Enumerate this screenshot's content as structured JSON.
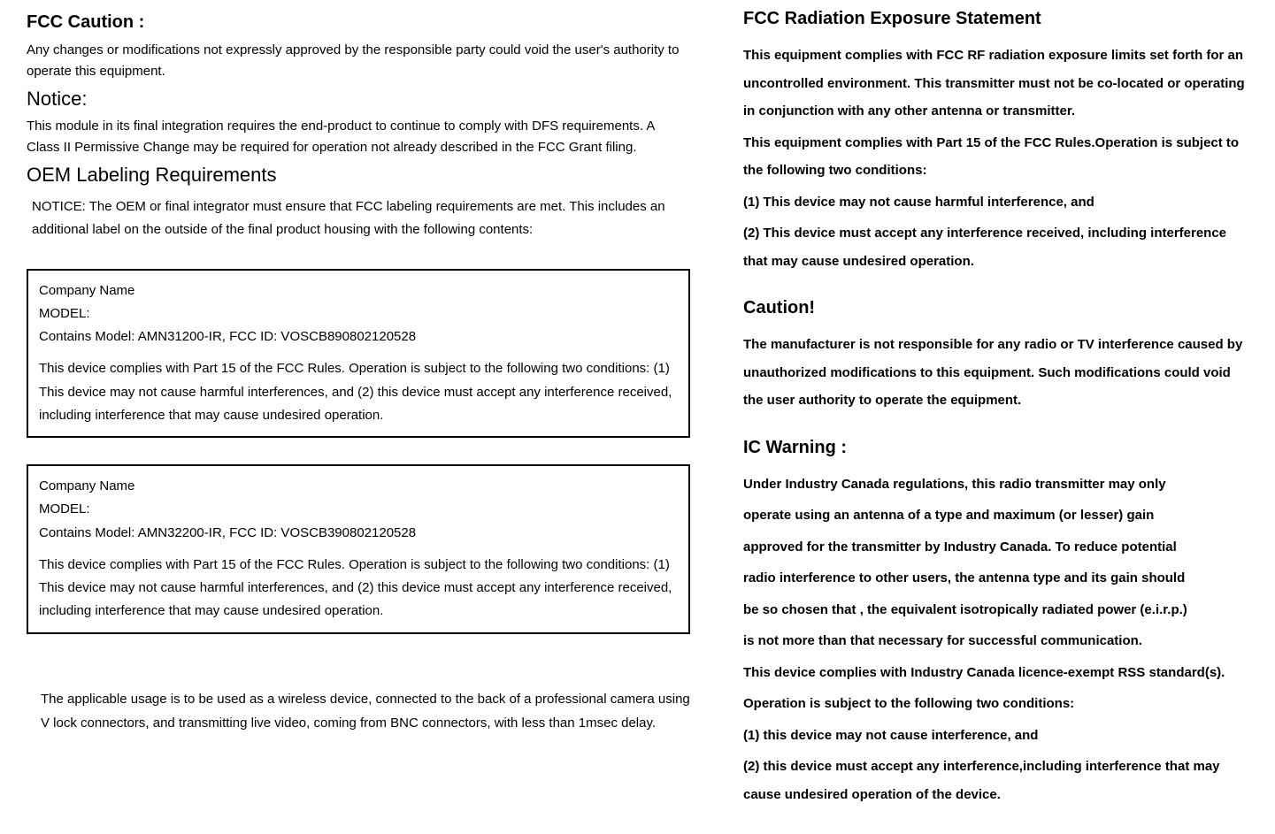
{
  "left": {
    "fcc_caution_heading": "FCC Caution :",
    "fcc_caution_text": "Any changes or modifications not expressly approved by the responsible party could void the user's authority to operate this equipment.",
    "notice_heading": "Notice:",
    "notice_text": "This module in its final integration requires the end-product to continue to comply with DFS requirements. A Class II Permissive Change may be required for operation not already described in the FCC Grant filing.",
    "oem_heading": "OEM Labeling Requirements",
    "oem_notice": "NOTICE: The OEM or final integrator must ensure that FCC labeling requirements are met. This includes an additional label on the outside of the final product housing with the following contents:",
    "box1": {
      "company": "Company Name",
      "model_label": "MODEL:",
      "contains": "Contains Model: AMN31200-IR, FCC ID: VOSCB890802120528",
      "compliance": "This device complies with Part 15 of the FCC Rules. Operation is subject to the following two conditions: (1) This device may not cause harmful interferences, and (2) this device must accept any interference received, including interference that may cause undesired operation."
    },
    "box2": {
      "company": "Company Name",
      "model_label": "MODEL:",
      "contains": "Contains Model: AMN32200-IR, FCC ID: VOSCB390802120528",
      "compliance": "This device complies with Part 15 of the FCC Rules. Operation is subject to the following two conditions: (1) This device may not cause harmful interferences, and (2) this device must accept any interference received, including interference that may cause undesired operation."
    },
    "usage": "The applicable usage is to be used as a wireless device, connected to the back of a professional camera using V lock connectors, and transmitting live video, coming from BNC connectors, with less than 1msec delay."
  },
  "right": {
    "radiation_heading": "FCC Radiation Exposure Statement",
    "radiation_p1": "This equipment complies with FCC RF radiation exposure limits set forth for an uncontrolled environment. This transmitter must not be co-located or operating in conjunction with any other antenna or transmitter.",
    "radiation_p2": "This equipment complies with Part 15 of the FCC Rules.Operation is subject to the following two conditions:",
    "radiation_c1": "(1) This device may not cause harmful interference, and",
    "radiation_c2": "(2) This device must accept any interference received, including interference that may cause undesired operation.",
    "caution_heading": "Caution!",
    "caution_text": "The manufacturer is not responsible for any radio or TV interference caused by unauthorized modifications to this equipment. Such modifications could void the user authority to operate the equipment.",
    "ic_heading": "IC Warning :",
    "ic_l1": "Under Industry Canada regulations, this radio transmitter may only",
    "ic_l2": "operate using an antenna of a type and maximum (or lesser) gain",
    "ic_l3": "approved for the transmitter by Industry Canada. To reduce potential",
    "ic_l4": "radio interference to other users, the antenna type and its gain should",
    "ic_l5": "be so chosen that , the equivalent isotropically radiated power (e.i.r.p.)",
    "ic_l6": "is not more than that necessary for successful communication.",
    "ic_l7": "This device complies with Industry Canada licence-exempt RSS standard(s).",
    "ic_l8": "Operation is subject to the following two conditions:",
    "ic_l9": "(1) this device may not cause interference, and",
    "ic_l10": "(2) this device must accept any interference,including interference that may cause undesired operation of the device."
  }
}
